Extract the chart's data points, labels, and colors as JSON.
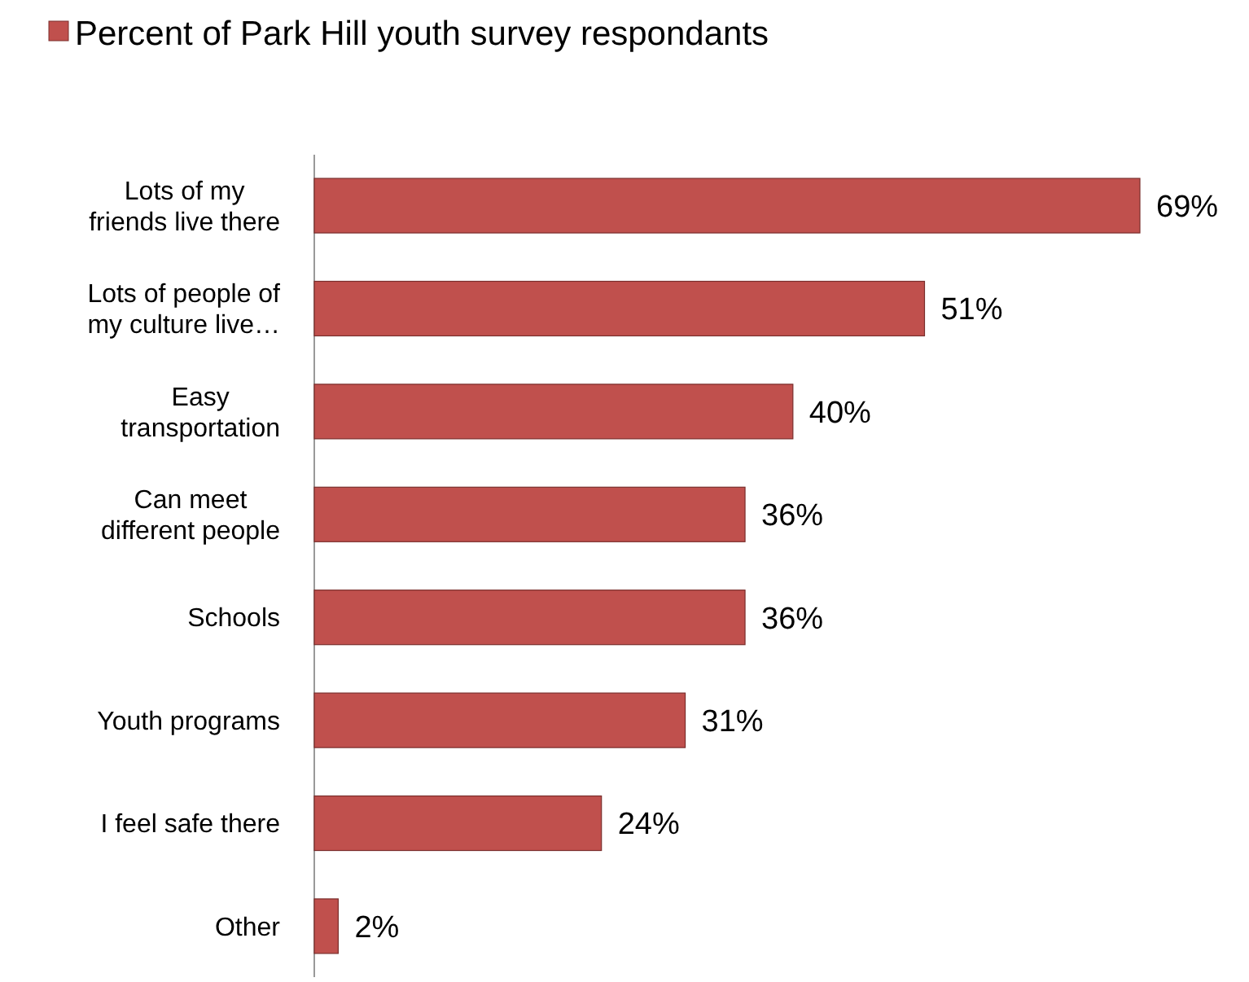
{
  "chart_data": {
    "type": "bar",
    "orientation": "horizontal",
    "legend": "top",
    "categories": [
      "Lots of my friends live there",
      "Lots of people of my culture live…",
      "Easy transportation",
      "Can meet different people",
      "Schools",
      "Youth programs",
      "I feel safe there",
      "Other"
    ],
    "series": [
      {
        "name": "Percent of Park Hill youth survey respondants",
        "color": "#c0504d",
        "values": [
          69,
          51,
          40,
          36,
          36,
          31,
          24,
          2
        ],
        "value_labels": [
          "69%",
          "51%",
          "40%",
          "36%",
          "36%",
          "31%",
          "24%",
          "2%"
        ]
      }
    ]
  }
}
